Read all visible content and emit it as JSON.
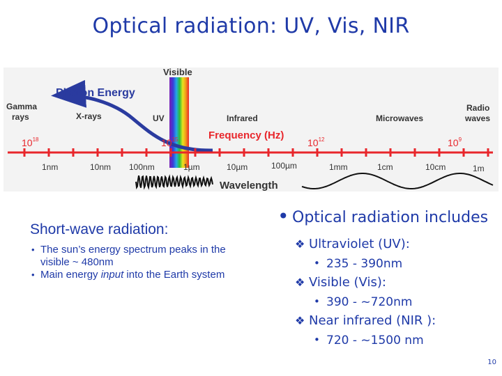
{
  "slide": {
    "title": "Optical radiation: UV, Vis, NIR",
    "page_number": "10"
  },
  "figure": {
    "visible": "Visible",
    "photon_energy": "Photon Energy",
    "bands": {
      "gamma_line1": "Gamma",
      "gamma_line2": "rays",
      "xrays": "X-rays",
      "uv": "UV",
      "infrared": "Infrared",
      "microwaves": "Microwaves",
      "radio_line1": "Radio",
      "radio_line2": "waves"
    },
    "frequency_label": "Frequency (Hz)",
    "frequency_ticks": [
      {
        "base": "10",
        "exp": "18"
      },
      {
        "base": "10",
        "exp": "15"
      },
      {
        "base": "10",
        "exp": "12"
      },
      {
        "base": "10",
        "exp": "9"
      }
    ],
    "wavelength_ticks": [
      "1nm",
      "10nm",
      "100nm",
      "1µm",
      "10µm",
      "100µm",
      "1mm",
      "1cm",
      "10cm",
      "1m"
    ],
    "wavelength_label": "Wavelength",
    "colors": {
      "red": "#e8262b",
      "blue": "#2a3b9f",
      "panel": "#f3f3f3",
      "text": "#1f3aa8"
    }
  },
  "left_block": {
    "heading": "Short-wave radiation:",
    "bullets": [
      {
        "parts": [
          "The sun’s energy spectrum peaks in the visible ~ 480nm"
        ]
      },
      {
        "pre": "Main energy ",
        "em": "input",
        "post": " into the Earth system"
      }
    ]
  },
  "right_block": {
    "main": "Optical radiation includes",
    "items": [
      {
        "label": "Ultraviolet (UV):",
        "sub": "235 - 390nm"
      },
      {
        "label": "Visible (Vis):",
        "sub": "390 - ~720nm"
      },
      {
        "label": "Near infrared (NIR ):",
        "sub": "720 - ~1500 nm"
      }
    ]
  }
}
